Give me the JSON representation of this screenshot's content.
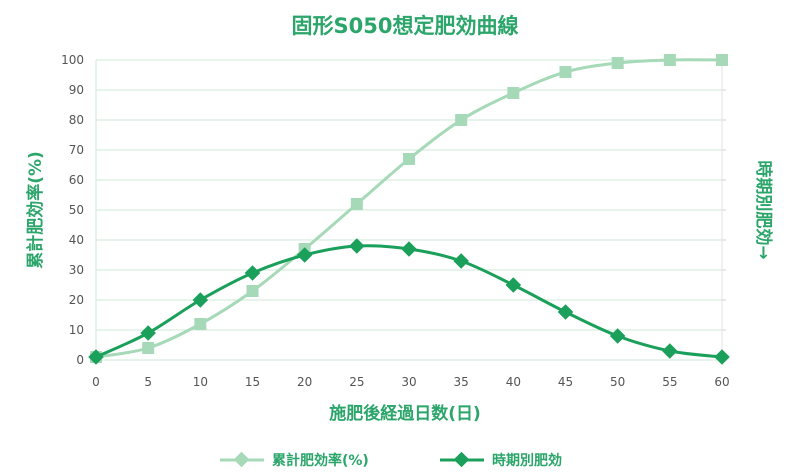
{
  "chart_data": {
    "type": "line",
    "title": "固形S050想定肥効曲線",
    "xlabel": "施肥後経過日数(日)",
    "ylabel": "累計肥効率(%)",
    "y2label": "時期別肥効→",
    "x": [
      0,
      5,
      10,
      15,
      20,
      25,
      30,
      35,
      40,
      45,
      50,
      55,
      60
    ],
    "xticks": [
      "0",
      "5",
      "10",
      "15",
      "20",
      "25",
      "30",
      "35",
      "40",
      "45",
      "50",
      "55",
      "60"
    ],
    "yticks": [
      "0",
      "10",
      "20",
      "30",
      "40",
      "50",
      "60",
      "70",
      "80",
      "90",
      "100"
    ],
    "xlim": [
      0,
      60
    ],
    "ylim": [
      0,
      100
    ],
    "grid": true,
    "legend_position": "bottom",
    "series": [
      {
        "name": "累計肥効率(%)",
        "marker": "square",
        "color": "#a6d9b8",
        "values": [
          1,
          4,
          12,
          23,
          37,
          52,
          67,
          80,
          89,
          96,
          99,
          100,
          100
        ]
      },
      {
        "name": "時期別肥効",
        "marker": "diamond",
        "color": "#1aa05a",
        "values": [
          1,
          9,
          20,
          29,
          35,
          38,
          37,
          33,
          25,
          16,
          8,
          3,
          1
        ]
      }
    ]
  }
}
